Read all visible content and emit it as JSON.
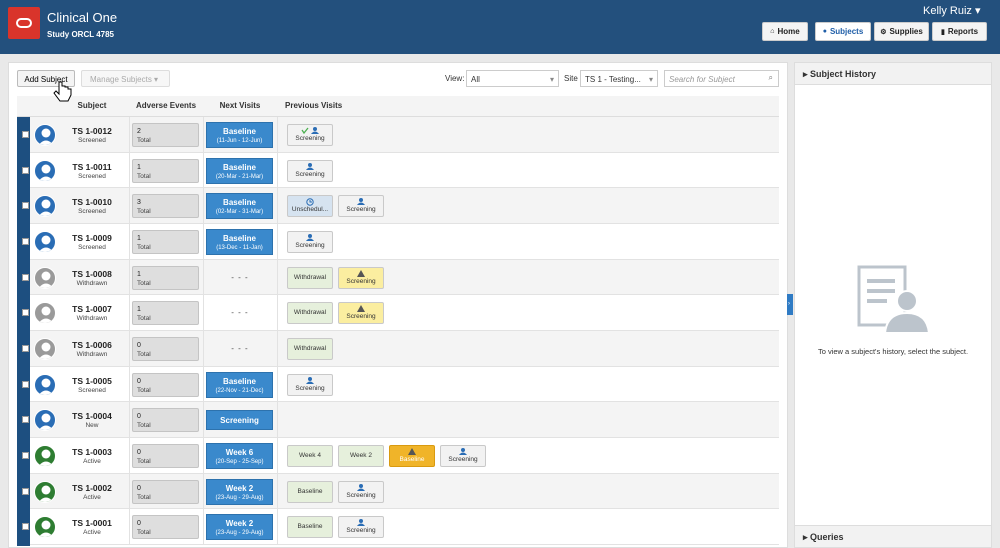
{
  "header": {
    "app": "Clinical One",
    "study": "Study ORCL 4785",
    "user": "Kelly Ruiz",
    "nav": [
      "Home",
      "Subjects",
      "Supplies",
      "Reports"
    ]
  },
  "toolbar": {
    "add": "Add Subject",
    "manage": "Manage Subjects",
    "view_label": "View:",
    "view": "All",
    "site_label": "Site",
    "site": "TS 1 - Testing...",
    "search": "Search for Subject"
  },
  "table": {
    "headers": [
      "Subject",
      "Adverse Events",
      "Next Visits",
      "Previous Visits"
    ],
    "rows": [
      {
        "id": "TS 1-0012",
        "status": "Screened",
        "avatar_color": "#2a6db5",
        "ae": 2,
        "ae_label": "Total",
        "next": {
          "name": "Baseline",
          "dates": "(11-Jun - 12-Jun)"
        },
        "previous": [
          {
            "name": "Screening",
            "color": "#f2f2f2",
            "icon": "check-person"
          }
        ]
      },
      {
        "id": "TS 1-0011",
        "status": "Screened",
        "avatar_color": "#2a6db5",
        "ae": 1,
        "ae_label": "Total",
        "next": {
          "name": "Baseline",
          "dates": "(20-Mar - 21-Mar)"
        },
        "previous": [
          {
            "name": "Screening",
            "color": "#f2f2f2",
            "icon": "person"
          }
        ]
      },
      {
        "id": "TS 1-0010",
        "status": "Screened",
        "avatar_color": "#2a6db5",
        "ae": 3,
        "ae_label": "Total",
        "next": {
          "name": "Baseline",
          "dates": "(02-Mar - 31-Mar)"
        },
        "previous": [
          {
            "name": "Unschedul...",
            "color": "#d6e3f0",
            "icon": "clock"
          },
          {
            "name": "Screening",
            "color": "#f2f2f2",
            "icon": "person"
          }
        ]
      },
      {
        "id": "TS 1-0009",
        "status": "Screened",
        "avatar_color": "#2a6db5",
        "ae": 1,
        "ae_label": "Total",
        "next": {
          "name": "Baseline",
          "dates": "(13-Dec - 11-Jan)"
        },
        "previous": [
          {
            "name": "Screening",
            "color": "#f2f2f2",
            "icon": "person"
          }
        ]
      },
      {
        "id": "TS 1-0008",
        "status": "Withdrawn",
        "avatar_color": "#9a9a9a",
        "ae": 1,
        "ae_label": "Total",
        "next": {
          "name": "- - -"
        },
        "previous": [
          {
            "name": "Withdrawal",
            "color": "#e6f0dc"
          },
          {
            "name": "Screening",
            "color": "#fbeea0",
            "icon": "warning"
          }
        ]
      },
      {
        "id": "TS 1-0007",
        "status": "Withdrawn",
        "avatar_color": "#9a9a9a",
        "ae": 1,
        "ae_label": "Total",
        "next": {
          "name": "- - -"
        },
        "previous": [
          {
            "name": "Withdrawal",
            "color": "#e6f0dc"
          },
          {
            "name": "Screening",
            "color": "#fbeea0",
            "icon": "warning"
          }
        ]
      },
      {
        "id": "TS 1-0006",
        "status": "Withdrawn",
        "avatar_color": "#9a9a9a",
        "ae": 0,
        "ae_label": "Total",
        "next": {
          "name": "- - -"
        },
        "previous": [
          {
            "name": "Withdrawal",
            "color": "#e6f0dc"
          }
        ]
      },
      {
        "id": "TS 1-0005",
        "status": "Screened",
        "avatar_color": "#2a6db5",
        "ae": 0,
        "ae_label": "Total",
        "next": {
          "name": "Baseline",
          "dates": "(22-Nov - 21-Dec)"
        },
        "previous": [
          {
            "name": "Screening",
            "color": "#f2f2f2",
            "icon": "person"
          }
        ]
      },
      {
        "id": "TS 1-0004",
        "status": "New",
        "avatar_color": "#2a6db5",
        "ae": 0,
        "ae_label": "Total",
        "next": {
          "name": "Screening"
        },
        "previous": []
      },
      {
        "id": "TS 1-0003",
        "status": "Active",
        "avatar_color": "#2e7d32",
        "ae": 0,
        "ae_label": "Total",
        "next": {
          "name": "Week 6",
          "dates": "(20-Sep - 25-Sep)"
        },
        "previous": [
          {
            "name": "Week 4",
            "color": "#e6f0dc"
          },
          {
            "name": "Week 2",
            "color": "#e6f0dc"
          },
          {
            "name": "Baseline",
            "color": "#f0b429",
            "icon": "warning"
          },
          {
            "name": "Screening",
            "color": "#f2f2f2",
            "icon": "person"
          }
        ]
      },
      {
        "id": "TS 1-0002",
        "status": "Active",
        "avatar_color": "#2e7d32",
        "ae": 0,
        "ae_label": "Total",
        "next": {
          "name": "Week 2",
          "dates": "(23-Aug - 29-Aug)"
        },
        "previous": [
          {
            "name": "Baseline",
            "color": "#e6f0dc"
          },
          {
            "name": "Screening",
            "color": "#f2f2f2",
            "icon": "person"
          }
        ]
      },
      {
        "id": "TS 1-0001",
        "status": "Active",
        "avatar_color": "#2e7d32",
        "ae": 0,
        "ae_label": "Total",
        "next": {
          "name": "Week 2",
          "dates": "(23-Aug - 29-Aug)"
        },
        "previous": [
          {
            "name": "Baseline",
            "color": "#e6f0dc"
          },
          {
            "name": "Screening",
            "color": "#f2f2f2",
            "icon": "person"
          }
        ]
      }
    ]
  },
  "history": {
    "title": "Subject History",
    "message": "To view a subject's history, select the subject.",
    "queries": "Queries"
  }
}
